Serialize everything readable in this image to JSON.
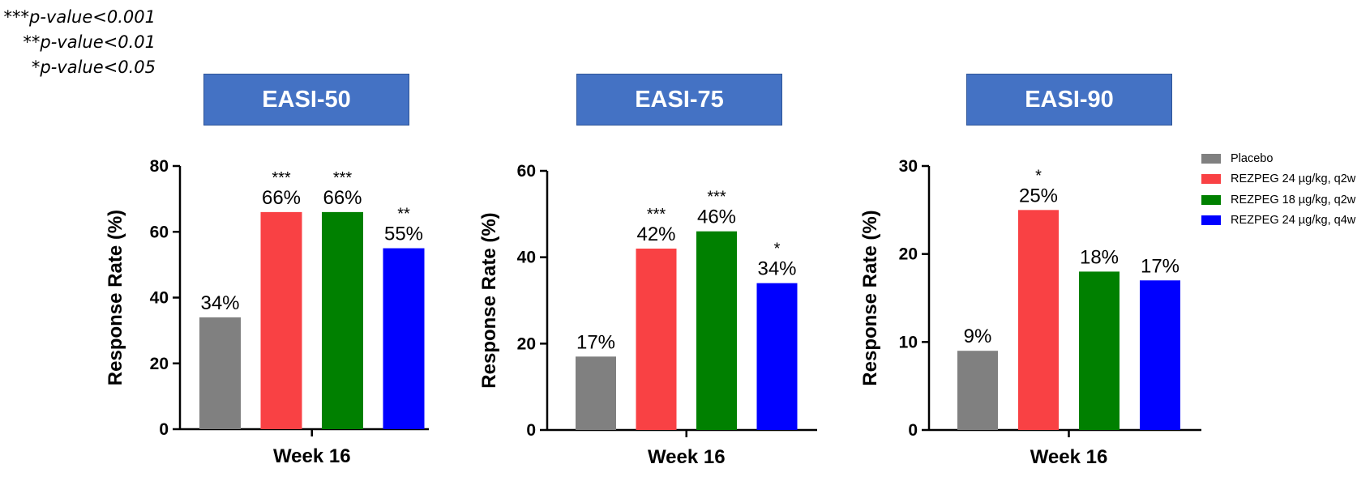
{
  "significance_notes": [
    "***p-value<0.001",
    "**p-value<0.01",
    "*p-value<0.05"
  ],
  "colors": {
    "Placebo": "#808080",
    "REZPEG 24 µg/kg, q2w": "#f94144",
    "REZPEG 18 µg/kg, q2w": "#008000",
    "REZPEG 24 µg/kg, q4w": "#0000ff",
    "title_box": "#4472c4"
  },
  "legend": [
    "Placebo",
    "REZPEG 24 µg/kg, q2w",
    "REZPEG 18 µg/kg, q2w",
    "REZPEG 24 µg/kg, q4w"
  ],
  "chart_data": [
    {
      "type": "bar",
      "title": "EASI-50",
      "xlabel": "Week 16",
      "ylabel": "Response Rate (%)",
      "ylim": [
        0,
        80
      ],
      "yticks": [
        0,
        20,
        40,
        60,
        80
      ],
      "categories": [
        "Week 16"
      ],
      "series": [
        {
          "name": "Placebo",
          "values": [
            34
          ],
          "label": "34%",
          "significance": ""
        },
        {
          "name": "REZPEG 24 µg/kg, q2w",
          "values": [
            66
          ],
          "label": "66%",
          "significance": "***"
        },
        {
          "name": "REZPEG 18 µg/kg, q2w",
          "values": [
            66
          ],
          "label": "66%",
          "significance": "***"
        },
        {
          "name": "REZPEG 24 µg/kg, q4w",
          "values": [
            55
          ],
          "label": "55%",
          "significance": "**"
        }
      ]
    },
    {
      "type": "bar",
      "title": "EASI-75",
      "xlabel": "Week 16",
      "ylabel": "Response Rate (%)",
      "ylim": [
        0,
        60
      ],
      "yticks": [
        0,
        20,
        40,
        60
      ],
      "categories": [
        "Week 16"
      ],
      "series": [
        {
          "name": "Placebo",
          "values": [
            17
          ],
          "label": "17%",
          "significance": ""
        },
        {
          "name": "REZPEG 24 µg/kg, q2w",
          "values": [
            42
          ],
          "label": "42%",
          "significance": "***"
        },
        {
          "name": "REZPEG 18 µg/kg, q2w",
          "values": [
            46
          ],
          "label": "46%",
          "significance": "***"
        },
        {
          "name": "REZPEG 24 µg/kg, q4w",
          "values": [
            34
          ],
          "label": "34%",
          "significance": "*"
        }
      ]
    },
    {
      "type": "bar",
      "title": "EASI-90",
      "xlabel": "Week 16",
      "ylabel": "Response Rate (%)",
      "ylim": [
        0,
        30
      ],
      "yticks": [
        0,
        10,
        20,
        30
      ],
      "categories": [
        "Week 16"
      ],
      "series": [
        {
          "name": "Placebo",
          "values": [
            9
          ],
          "label": "9%",
          "significance": ""
        },
        {
          "name": "REZPEG 24 µg/kg, q2w",
          "values": [
            25
          ],
          "label": "25%",
          "significance": "*"
        },
        {
          "name": "REZPEG 18 µg/kg, q2w",
          "values": [
            18
          ],
          "label": "18%",
          "significance": ""
        },
        {
          "name": "REZPEG 24 µg/kg, q4w",
          "values": [
            17
          ],
          "label": "17%",
          "significance": ""
        }
      ]
    }
  ]
}
